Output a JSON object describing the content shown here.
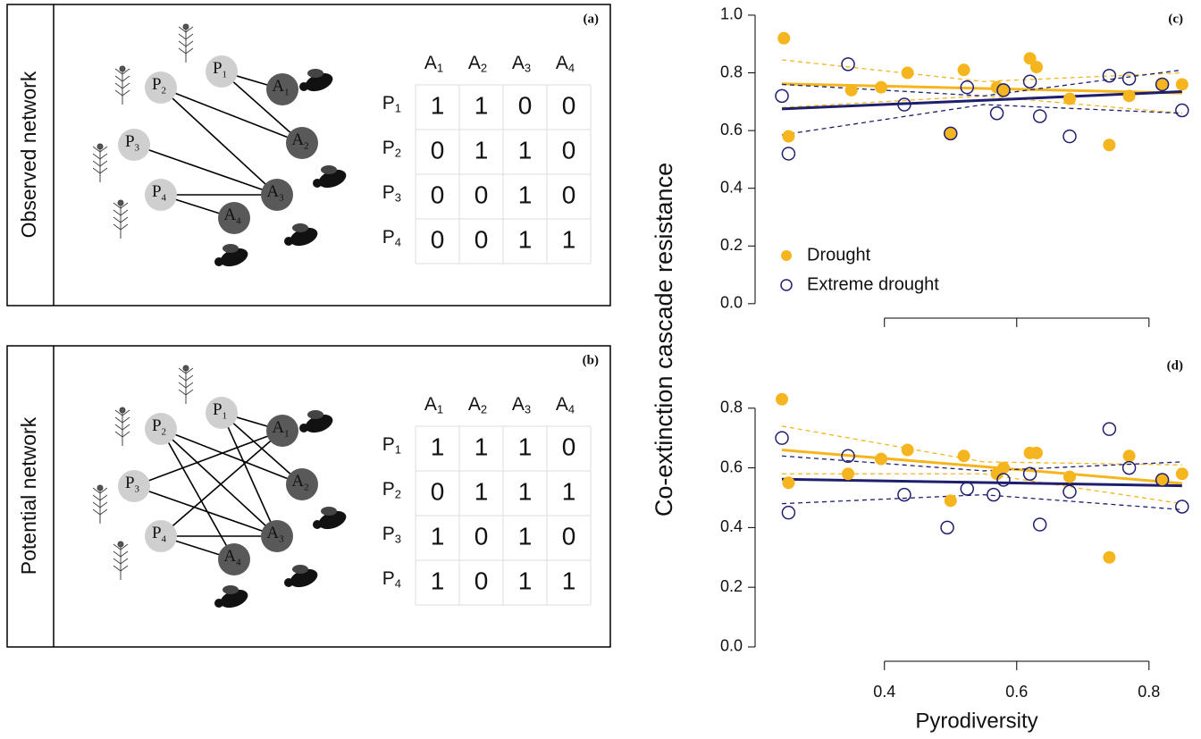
{
  "figure": {
    "panels": [
      {
        "label": "(a)",
        "side_label": "Observed network",
        "nodes": [
          {
            "name": "P",
            "sub": "1"
          },
          {
            "name": "P",
            "sub": "2"
          },
          {
            "name": "P",
            "sub": "3"
          },
          {
            "name": "P",
            "sub": "4"
          },
          {
            "name": "A",
            "sub": "1"
          },
          {
            "name": "A",
            "sub": "2"
          },
          {
            "name": "A",
            "sub": "3"
          },
          {
            "name": "A",
            "sub": "4"
          }
        ],
        "matrix": {
          "columns": [
            {
              "name": "A",
              "sub": "1"
            },
            {
              "name": "A",
              "sub": "2"
            },
            {
              "name": "A",
              "sub": "3"
            },
            {
              "name": "A",
              "sub": "4"
            }
          ],
          "rows": [
            {
              "name": "P",
              "sub": "1"
            },
            {
              "name": "P",
              "sub": "2"
            },
            {
              "name": "P",
              "sub": "3"
            },
            {
              "name": "P",
              "sub": "4"
            }
          ],
          "cells": [
            [
              1,
              1,
              0,
              0
            ],
            [
              0,
              1,
              1,
              0
            ],
            [
              0,
              0,
              1,
              0
            ],
            [
              0,
              0,
              1,
              1
            ]
          ]
        }
      },
      {
        "label": "(b)",
        "side_label": "Potential network",
        "nodes": [
          {
            "name": "P",
            "sub": "1"
          },
          {
            "name": "P",
            "sub": "2"
          },
          {
            "name": "P",
            "sub": "3"
          },
          {
            "name": "P",
            "sub": "4"
          },
          {
            "name": "A",
            "sub": "1"
          },
          {
            "name": "A",
            "sub": "2"
          },
          {
            "name": "A",
            "sub": "3"
          },
          {
            "name": "A",
            "sub": "4"
          }
        ],
        "matrix": {
          "columns": [
            {
              "name": "A",
              "sub": "1"
            },
            {
              "name": "A",
              "sub": "2"
            },
            {
              "name": "A",
              "sub": "3"
            },
            {
              "name": "A",
              "sub": "4"
            }
          ],
          "rows": [
            {
              "name": "P",
              "sub": "1"
            },
            {
              "name": "P",
              "sub": "2"
            },
            {
              "name": "P",
              "sub": "3"
            },
            {
              "name": "P",
              "sub": "4"
            }
          ],
          "cells": [
            [
              1,
              1,
              1,
              0
            ],
            [
              0,
              1,
              1,
              1
            ],
            [
              1,
              0,
              1,
              0
            ],
            [
              1,
              0,
              1,
              1
            ]
          ]
        }
      }
    ]
  },
  "chart_data": [
    {
      "type": "scatter",
      "panel_label": "(c)",
      "ylabel": "Co-extinction cascade resistance",
      "xlim": [
        0.222,
        0.857
      ],
      "ylim": [
        -0.05,
        1.037
      ],
      "yticks": [
        {
          "value": 0,
          "label": "0.0"
        },
        0.2,
        0.4,
        0.6,
        0.8,
        {
          "value": 1,
          "label": "1.0"
        }
      ],
      "legend": "bottom-left",
      "series": [
        {
          "name": "Drought",
          "color": "#f5b51e",
          "filled": true,
          "x": [
            0.248,
            0.255,
            0.35,
            0.395,
            0.435,
            0.5,
            0.52,
            0.57,
            0.58,
            0.62,
            0.63,
            0.68,
            0.74,
            0.77,
            0.82,
            0.85
          ],
          "values": [
            0.92,
            0.58,
            0.74,
            0.75,
            0.8,
            0.59,
            0.81,
            0.75,
            0.74,
            0.85,
            0.82,
            0.71,
            0.55,
            0.72,
            0.76,
            0.76
          ],
          "fit": {
            "x": [
              0.245,
              0.55,
              0.85
            ],
            "values": [
              0.762,
              0.746,
              0.73
            ],
            "lower": [
              0.68,
              0.72,
              0.66
            ],
            "upper": [
              0.845,
              0.77,
              0.8
            ]
          }
        },
        {
          "name": "Extreme drought",
          "color": "#1f1f6e",
          "filled": false,
          "x": [
            0.245,
            0.255,
            0.345,
            0.43,
            0.5,
            0.525,
            0.57,
            0.58,
            0.62,
            0.635,
            0.68,
            0.74,
            0.77,
            0.82,
            0.85
          ],
          "values": [
            0.72,
            0.52,
            0.83,
            0.69,
            0.59,
            0.75,
            0.66,
            0.74,
            0.77,
            0.65,
            0.58,
            0.79,
            0.78,
            0.76,
            0.67
          ],
          "fit": {
            "x": [
              0.245,
              0.55,
              0.85
            ],
            "values": [
              0.675,
              0.705,
              0.735
            ],
            "lower": [
              0.585,
              0.69,
              0.66
            ],
            "upper": [
              0.76,
              0.72,
              0.81
            ]
          }
        }
      ]
    },
    {
      "type": "scatter",
      "panel_label": "(d)",
      "xlabel": "Pyrodiversity",
      "xlim": [
        0.222,
        0.857
      ],
      "ylim": [
        -0.048,
        0.991
      ],
      "xticks": [
        0.4,
        0.6,
        0.8
      ],
      "yticks": [
        {
          "value": 0,
          "label": "0.0"
        },
        0.2,
        0.4,
        0.6,
        0.8
      ],
      "series": [
        {
          "name": "Drought",
          "color": "#f5b51e",
          "filled": true,
          "x": [
            0.245,
            0.255,
            0.345,
            0.395,
            0.435,
            0.5,
            0.52,
            0.57,
            0.58,
            0.62,
            0.63,
            0.68,
            0.74,
            0.77,
            0.82,
            0.85
          ],
          "values": [
            0.83,
            0.55,
            0.58,
            0.63,
            0.66,
            0.49,
            0.64,
            0.58,
            0.6,
            0.65,
            0.65,
            0.57,
            0.3,
            0.64,
            0.56,
            0.58
          ],
          "fit": {
            "x": [
              0.245,
              0.55,
              0.85
            ],
            "values": [
              0.66,
              0.604,
              0.548
            ],
            "lower": [
              0.58,
              0.58,
              0.48
            ],
            "upper": [
              0.74,
              0.62,
              0.61
            ]
          }
        },
        {
          "name": "Extreme drought",
          "color": "#1f1f6e",
          "filled": false,
          "x": [
            0.245,
            0.255,
            0.345,
            0.43,
            0.495,
            0.525,
            0.565,
            0.58,
            0.62,
            0.635,
            0.68,
            0.74,
            0.77,
            0.82,
            0.85
          ],
          "values": [
            0.7,
            0.45,
            0.64,
            0.51,
            0.4,
            0.53,
            0.51,
            0.56,
            0.58,
            0.41,
            0.52,
            0.73,
            0.6,
            0.56,
            0.47
          ],
          "fit": {
            "x": [
              0.245,
              0.55,
              0.85
            ],
            "values": [
              0.562,
              0.551,
              0.54
            ],
            "lower": [
              0.48,
              0.51,
              0.46
            ],
            "upper": [
              0.64,
              0.59,
              0.62
            ]
          }
        }
      ]
    }
  ]
}
